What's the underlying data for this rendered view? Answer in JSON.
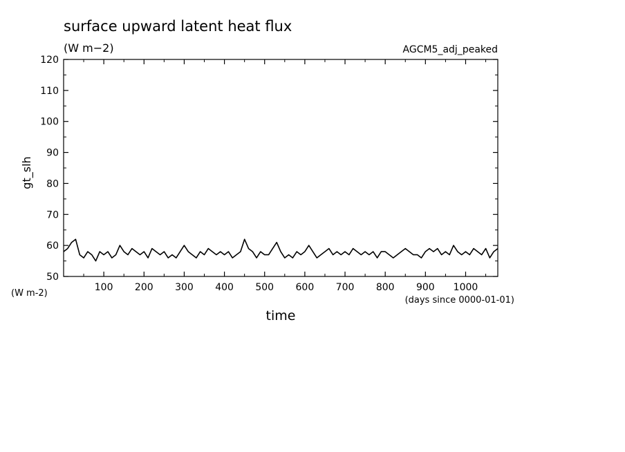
{
  "chart_data": {
    "type": "line",
    "title": "surface upward latent heat flux",
    "subtitle": "(W m−2)",
    "run_label": "AGCM5_adj_peaked",
    "ylabel": "gt_slh",
    "yunits": "(W m-2)",
    "xlabel": "time",
    "xunits": "(days since 0000-01-01)",
    "xlim": [
      0,
      1080
    ],
    "ylim": [
      50,
      120
    ],
    "xticks": [
      100,
      200,
      300,
      400,
      500,
      600,
      700,
      800,
      900,
      1000
    ],
    "yticks": [
      50,
      60,
      70,
      80,
      90,
      100,
      110,
      120
    ],
    "grid": false,
    "series": [
      {
        "x": [
          0,
          10,
          20,
          30,
          40,
          50,
          60,
          70,
          80,
          90,
          100,
          110,
          120,
          130,
          140,
          150,
          160,
          170,
          180,
          190,
          200,
          210,
          220,
          230,
          240,
          250,
          260,
          270,
          280,
          290,
          300,
          310,
          320,
          330,
          340,
          350,
          360,
          370,
          380,
          390,
          400,
          410,
          420,
          430,
          440,
          450,
          460,
          470,
          480,
          490,
          500,
          510,
          520,
          530,
          540,
          550,
          560,
          570,
          580,
          590,
          600,
          610,
          620,
          630,
          640,
          650,
          660,
          670,
          680,
          690,
          700,
          710,
          720,
          730,
          740,
          750,
          760,
          770,
          780,
          790,
          800,
          810,
          820,
          830,
          840,
          850,
          860,
          870,
          880,
          890,
          900,
          910,
          920,
          930,
          940,
          950,
          960,
          970,
          980,
          990,
          1000,
          1010,
          1020,
          1030,
          1040,
          1050,
          1060,
          1070,
          1080
        ],
        "y": [
          58,
          59,
          61,
          62,
          57,
          56,
          58,
          57,
          55,
          58,
          57,
          58,
          56,
          57,
          60,
          58,
          57,
          59,
          58,
          57,
          58,
          56,
          59,
          58,
          57,
          58,
          56,
          57,
          56,
          58,
          60,
          58,
          57,
          56,
          58,
          57,
          59,
          58,
          57,
          58,
          57,
          58,
          56,
          57,
          58,
          62,
          59,
          58,
          56,
          58,
          57,
          57,
          59,
          61,
          58,
          56,
          57,
          56,
          58,
          57,
          58,
          60,
          58,
          56,
          57,
          58,
          59,
          57,
          58,
          57,
          58,
          57,
          59,
          58,
          57,
          58,
          57,
          58,
          56,
          58,
          58,
          57,
          56,
          57,
          58,
          59,
          58,
          57,
          57,
          56,
          58,
          59,
          58,
          59,
          57,
          58,
          57,
          60,
          58,
          57,
          58,
          57,
          59,
          58,
          57,
          59,
          56,
          58,
          59
        ]
      }
    ]
  }
}
